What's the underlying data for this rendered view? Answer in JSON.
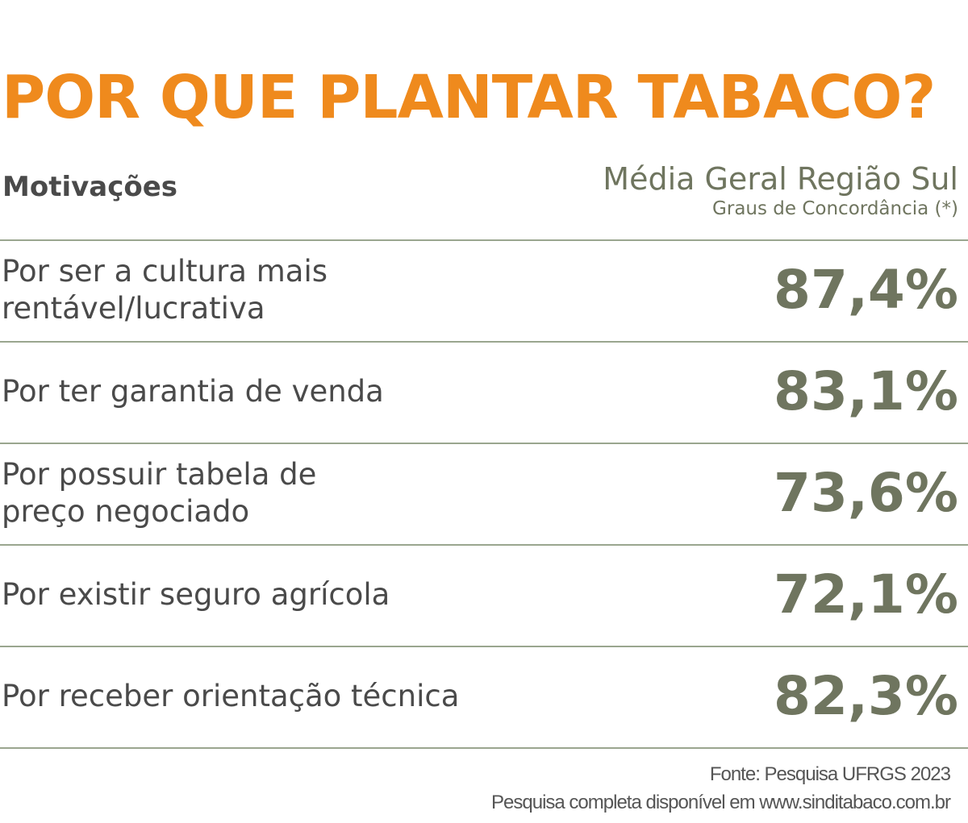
{
  "title": "POR QUE PLANTAR TABACO?",
  "table": {
    "header": {
      "label": "Motivações",
      "value_title": "Média Geral Região Sul",
      "value_subtitle": "Graus de Concordância (*)"
    },
    "rows": [
      {
        "label": [
          "Por ser a cultura mais",
          "rentável/lucrativa"
        ],
        "value": "87,4%"
      },
      {
        "label": [
          "Por ter garantia de venda"
        ],
        "value": "83,1%"
      },
      {
        "label": [
          "Por possuir tabela de",
          "preço negociado"
        ],
        "value": "73,6%"
      },
      {
        "label": [
          "Por existir seguro agrícola"
        ],
        "value": "72,1%"
      },
      {
        "label": [
          "Por receber orientação técnica"
        ],
        "value": "82,3%"
      }
    ]
  },
  "footer": {
    "source": "Fonte: Pesquisa UFRGS 2023",
    "link": "Pesquisa completa disponível em www.sinditabaco.com.br"
  }
}
